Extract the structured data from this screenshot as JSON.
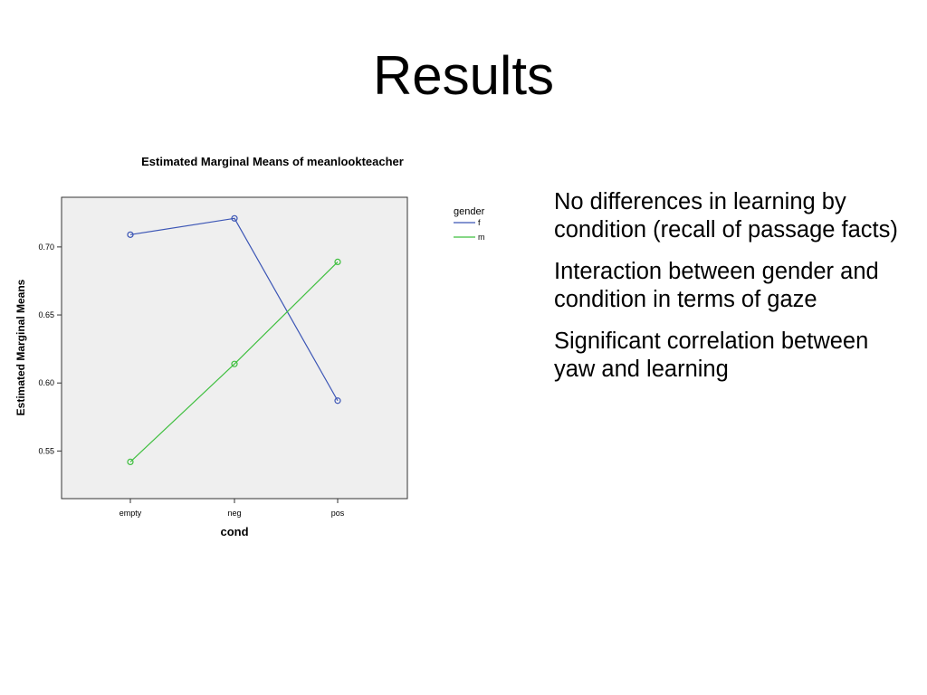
{
  "slide": {
    "title": "Results"
  },
  "bullets": [
    "No differences in learning by condition (recall of passage facts)",
    "Interaction between gender and condition in terms of gaze",
    "Significant correlation between yaw and learning"
  ],
  "chart_data": {
    "type": "line",
    "title": "Estimated Marginal Means of meanlookteacher",
    "xlabel": "cond",
    "ylabel": "Estimated Marginal Means",
    "categories": [
      "empty",
      "neg",
      "pos"
    ],
    "series": [
      {
        "name": "f",
        "values": [
          0.709,
          0.721,
          0.587
        ]
      },
      {
        "name": "m",
        "values": [
          0.542,
          0.614,
          0.689
        ]
      }
    ],
    "yticks": [
      "0.55",
      "0.60",
      "0.65",
      "0.70"
    ],
    "ylim": [
      0.515,
      0.7365
    ],
    "legend_title": "gender",
    "legend_position": "right",
    "grid": false,
    "colors": {
      "f": "#3b55b5",
      "m": "#3fbf3f",
      "plot_background": "#efefef"
    }
  }
}
